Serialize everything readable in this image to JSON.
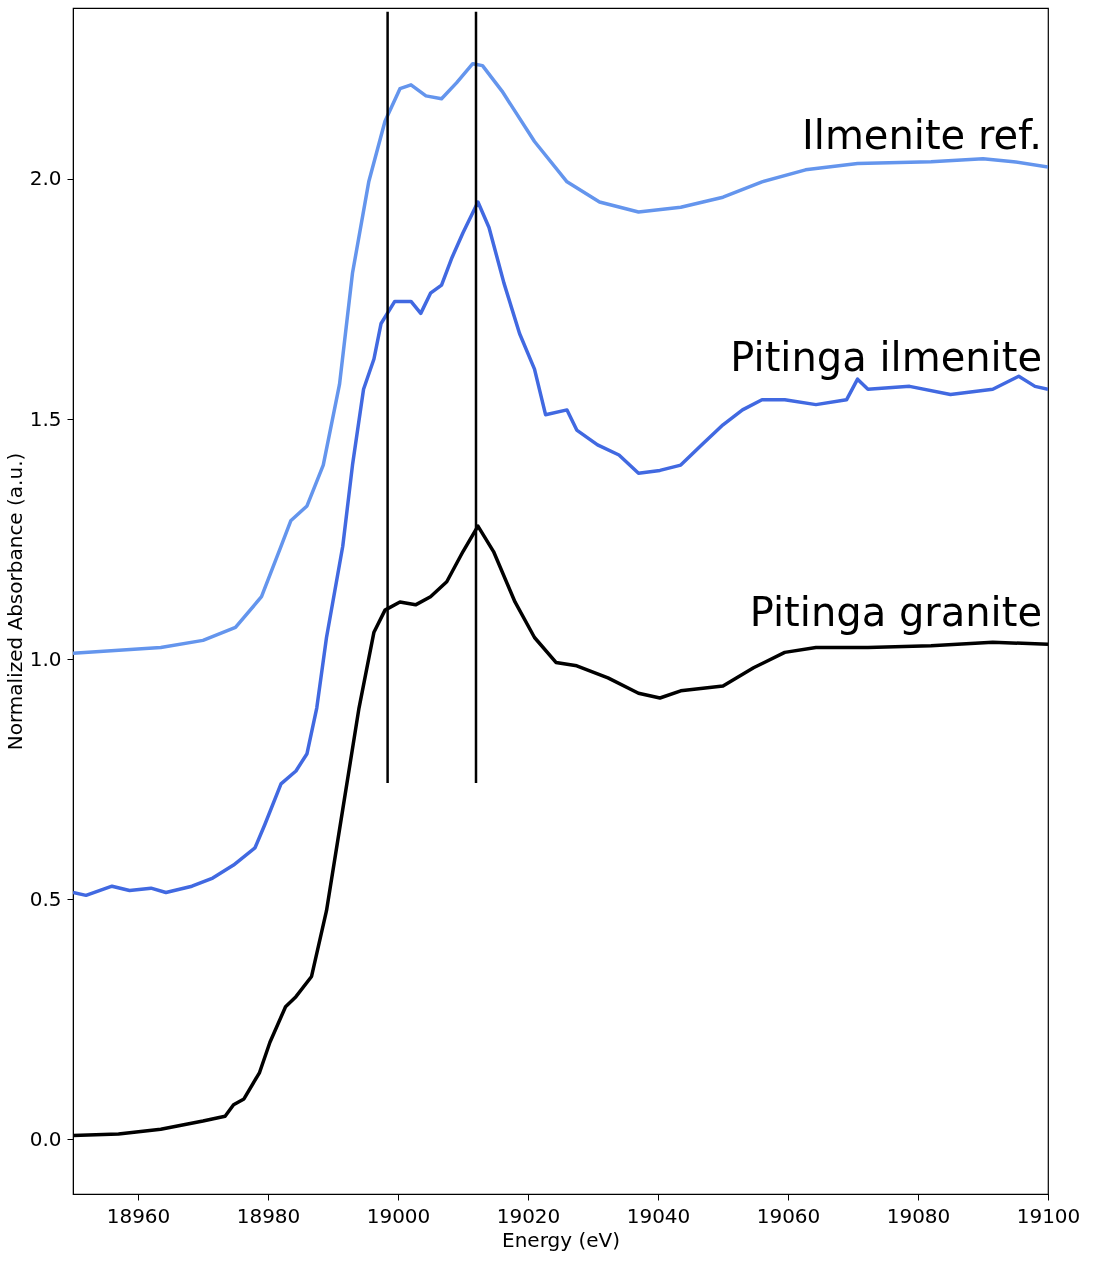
{
  "chart_data": {
    "type": "line",
    "xlabel": "Energy (eV)",
    "ylabel": "Normalized Absorbance (a.u.)",
    "xlim": [
      18950,
      19100
    ],
    "xticks": [
      18960,
      18980,
      19000,
      19020,
      19040,
      19060,
      19080,
      19100
    ],
    "ylim": [
      -0.114,
      2.356
    ],
    "yticks": [
      {
        "value": 0,
        "label": "0.0"
      },
      0.5,
      {
        "value": 1,
        "label": "1.0"
      },
      1.5,
      {
        "value": 2,
        "label": "2.0"
      }
    ],
    "grid": false,
    "legend": false,
    "marker": "none",
    "line_style": "solid",
    "series": [
      {
        "name": "Ilmenite ref.",
        "color": "#6495ed",
        "x": [
          18950,
          18963.5,
          18970,
          18975,
          18979,
          18982,
          18983.5,
          18986,
          18988.5,
          18991,
          18993,
          18995.5,
          18998,
          19000.3,
          19002,
          19004.3,
          19006.7,
          19009,
          19011.5,
          19013,
          19016,
          19021,
          19026,
          19031,
          19037,
          19043.5,
          19050,
          19056,
          19062.7,
          19070.7,
          19082,
          19090,
          19094.7,
          19100
        ],
        "values": [
          1.012,
          1.024,
          1.039,
          1.066,
          1.13,
          1.235,
          1.288,
          1.319,
          1.404,
          1.572,
          1.804,
          1.994,
          2.12,
          2.188,
          2.196,
          2.173,
          2.167,
          2.2,
          2.24,
          2.236,
          2.183,
          2.078,
          1.994,
          1.952,
          1.931,
          1.941,
          1.962,
          1.994,
          2.019,
          2.032,
          2.036,
          2.042,
          2.036,
          2.025
        ]
      },
      {
        "name": "Pitinga ilmenite",
        "color": "#4169e1",
        "x": [
          18950,
          18952,
          18956,
          18958.7,
          18962,
          18964.3,
          18968.3,
          18971.5,
          18974.7,
          18978,
          18979.5,
          18982,
          18984.3,
          18986,
          18987.5,
          18989,
          18991.5,
          18993,
          18994.7,
          18996.3,
          18997.4,
          18999.5,
          19002,
          19003.5,
          19005,
          19006.7,
          19008.3,
          19010,
          19012.3,
          19014,
          19016.3,
          19018.7,
          19021,
          19022.7,
          19026,
          19027.5,
          19030.7,
          19034,
          19037,
          19040.3,
          19043.5,
          19046.7,
          19050,
          19053,
          19056,
          19059.5,
          19064.3,
          19069,
          19070.7,
          19072.3,
          19078.7,
          19085,
          19091.5,
          19095.5,
          19098,
          19100
        ],
        "values": [
          0.514,
          0.508,
          0.527,
          0.518,
          0.523,
          0.514,
          0.527,
          0.544,
          0.571,
          0.607,
          0.655,
          0.74,
          0.767,
          0.803,
          0.898,
          1.045,
          1.235,
          1.404,
          1.562,
          1.625,
          1.699,
          1.745,
          1.745,
          1.72,
          1.762,
          1.779,
          1.836,
          1.888,
          1.952,
          1.899,
          1.783,
          1.678,
          1.604,
          1.509,
          1.519,
          1.477,
          1.446,
          1.425,
          1.387,
          1.393,
          1.404,
          1.446,
          1.488,
          1.519,
          1.54,
          1.54,
          1.53,
          1.54,
          1.583,
          1.562,
          1.568,
          1.551,
          1.562,
          1.589,
          1.568,
          1.562
        ]
      },
      {
        "name": "Pitinga granite",
        "color": "#000000",
        "x": [
          18950,
          18957,
          18963.5,
          18970,
          18973.4,
          18974.7,
          18976.3,
          18978.7,
          18980.3,
          18982.7,
          18984.3,
          18986.7,
          18989,
          18991.5,
          18994,
          18996.3,
          18998,
          19000.3,
          19002.7,
          19005,
          19007.5,
          19010,
          19012.3,
          19014.7,
          19018,
          19021,
          19024.3,
          19027.5,
          19032.3,
          19037,
          19040.3,
          19043.5,
          19050,
          19054.7,
          19059.5,
          19064.3,
          19072.3,
          19082,
          19091.5,
          19100
        ],
        "values": [
          0.008,
          0.011,
          0.021,
          0.038,
          0.048,
          0.072,
          0.084,
          0.139,
          0.202,
          0.276,
          0.297,
          0.339,
          0.476,
          0.687,
          0.898,
          1.056,
          1.102,
          1.119,
          1.113,
          1.13,
          1.161,
          1.224,
          1.277,
          1.224,
          1.119,
          1.045,
          0.993,
          0.986,
          0.961,
          0.929,
          0.919,
          0.934,
          0.944,
          0.982,
          1.014,
          1.024,
          1.024,
          1.028,
          1.035,
          1.031
        ]
      },
      {
        "color": "#000000",
        "x": [
          18998.4,
          18998.4
        ],
        "values": [
          0.742,
          2.348
        ]
      },
      {
        "color": "#000000",
        "x": [
          19012,
          19012
        ],
        "values": [
          0.742,
          2.348
        ]
      }
    ]
  }
}
